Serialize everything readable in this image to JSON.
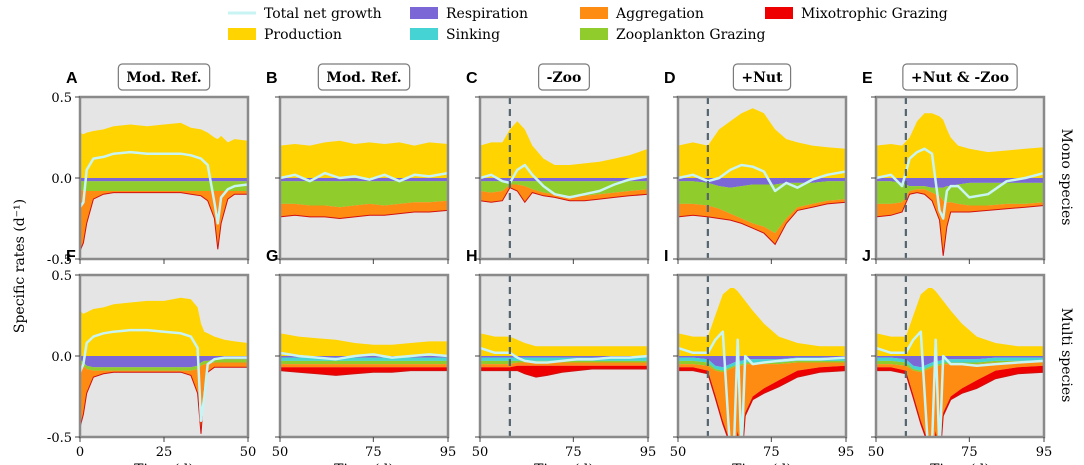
{
  "legend": [
    {
      "label": "Total net growth",
      "color": "#c9f4f4",
      "kind": "line"
    },
    {
      "label": "Respiration",
      "color": "#7b68d6",
      "kind": "patch"
    },
    {
      "label": "Aggregation",
      "color": "#ff8c12",
      "kind": "patch"
    },
    {
      "label": "Mixotrophic Grazing",
      "color": "#ee0000",
      "kind": "patch"
    },
    {
      "label": "Production",
      "color": "#ffd400",
      "kind": "patch"
    },
    {
      "label": "Sinking",
      "color": "#45d3d3",
      "kind": "patch"
    },
    {
      "label": "Zooplankton Grazing",
      "color": "#8fcc2c",
      "kind": "patch"
    }
  ],
  "axes": {
    "ylabel": "Specific rates (d⁻¹)",
    "xlabel": "Time (d)",
    "yticks": [
      "0.5",
      "0.0",
      "-0.5"
    ],
    "ylim": [
      -0.5,
      0.5
    ]
  },
  "row_labels": [
    "Mono species",
    "Multi species"
  ],
  "chart_data": [
    {
      "panel": "A",
      "title": "Mod. Ref.",
      "type": "area",
      "xlim": [
        0,
        50
      ],
      "xticks": [
        0,
        25,
        50
      ],
      "event_day": null,
      "time": [
        0,
        1,
        2,
        4,
        7,
        10,
        15,
        20,
        25,
        30,
        33,
        36,
        38,
        40,
        41,
        42,
        44,
        46,
        50
      ],
      "production": [
        0.28,
        0.27,
        0.28,
        0.29,
        0.3,
        0.32,
        0.33,
        0.32,
        0.33,
        0.34,
        0.31,
        0.3,
        0.28,
        0.25,
        0.24,
        0.26,
        0.22,
        0.24,
        0.23
      ],
      "respiration": [
        -0.02,
        -0.02,
        -0.02,
        -0.02,
        -0.02,
        -0.02,
        -0.02,
        -0.02,
        -0.02,
        -0.02,
        -0.02,
        -0.02,
        -0.02,
        -0.02,
        -0.02,
        -0.02,
        -0.02,
        -0.02,
        -0.02
      ],
      "zooplankton_grazing": [
        -0.05,
        -0.06,
        -0.06,
        -0.06,
        -0.06,
        -0.06,
        -0.06,
        -0.06,
        -0.06,
        -0.06,
        -0.06,
        -0.06,
        -0.06,
        -0.06,
        -0.06,
        -0.06,
        -0.06,
        -0.06,
        -0.06
      ],
      "aggregation": [
        -0.38,
        -0.32,
        -0.2,
        -0.05,
        -0.02,
        -0.01,
        -0.01,
        -0.01,
        -0.01,
        -0.01,
        -0.02,
        -0.03,
        -0.06,
        -0.17,
        -0.36,
        -0.2,
        -0.05,
        -0.02,
        -0.02
      ],
      "net_growth": [
        -0.18,
        -0.15,
        0.05,
        0.12,
        0.13,
        0.15,
        0.16,
        0.15,
        0.15,
        0.15,
        0.14,
        0.12,
        0.08,
        -0.15,
        -0.28,
        -0.12,
        -0.07,
        -0.05,
        -0.04
      ]
    },
    {
      "panel": "B",
      "title": "Mod. Ref.",
      "type": "area",
      "xlim": [
        50,
        95
      ],
      "xticks": [
        50,
        75,
        95
      ],
      "event_day": null,
      "time": [
        50,
        54,
        58,
        62,
        66,
        70,
        74,
        78,
        82,
        86,
        90,
        95
      ],
      "production": [
        0.2,
        0.21,
        0.2,
        0.22,
        0.23,
        0.21,
        0.22,
        0.21,
        0.22,
        0.2,
        0.22,
        0.21
      ],
      "respiration": [
        -0.02,
        -0.02,
        -0.02,
        -0.02,
        -0.02,
        -0.02,
        -0.02,
        -0.02,
        -0.02,
        -0.02,
        -0.02,
        -0.02
      ],
      "zooplankton_grazing": [
        -0.14,
        -0.14,
        -0.15,
        -0.15,
        -0.16,
        -0.15,
        -0.14,
        -0.15,
        -0.14,
        -0.13,
        -0.13,
        -0.12
      ],
      "aggregation": [
        -0.08,
        -0.07,
        -0.07,
        -0.07,
        -0.07,
        -0.07,
        -0.07,
        -0.06,
        -0.06,
        -0.06,
        -0.06,
        -0.06
      ],
      "net_growth": [
        0.0,
        0.02,
        -0.02,
        0.03,
        0.0,
        0.01,
        -0.01,
        0.02,
        -0.02,
        0.02,
        0.01,
        0.03
      ]
    },
    {
      "panel": "C",
      "title": "-Zoo",
      "type": "area",
      "xlim": [
        50,
        95
      ],
      "xticks": [
        50,
        75,
        95
      ],
      "event_day": 58,
      "time": [
        50,
        53,
        56,
        58,
        60,
        62,
        64,
        67,
        70,
        74,
        78,
        82,
        86,
        90,
        95
      ],
      "production": [
        0.2,
        0.22,
        0.22,
        0.3,
        0.35,
        0.3,
        0.2,
        0.12,
        0.08,
        0.08,
        0.09,
        0.1,
        0.12,
        0.14,
        0.18
      ],
      "respiration": [
        -0.02,
        -0.02,
        -0.02,
        -0.02,
        -0.02,
        -0.02,
        -0.02,
        -0.02,
        -0.02,
        -0.02,
        -0.02,
        -0.02,
        -0.02,
        -0.02,
        -0.02
      ],
      "zooplankton_grazing": [
        -0.06,
        -0.07,
        -0.06,
        -0.02,
        -0.02,
        -0.03,
        -0.05,
        -0.07,
        -0.08,
        -0.09,
        -0.09,
        -0.08,
        -0.07,
        -0.06,
        -0.05
      ],
      "aggregation": [
        -0.06,
        -0.06,
        -0.06,
        -0.02,
        -0.04,
        -0.1,
        -0.02,
        -0.02,
        -0.02,
        -0.03,
        -0.03,
        -0.03,
        -0.03,
        -0.03,
        -0.03
      ],
      "net_growth": [
        0.0,
        0.02,
        -0.02,
        -0.03,
        0.05,
        0.08,
        0.02,
        -0.05,
        -0.1,
        -0.12,
        -0.1,
        -0.08,
        -0.04,
        -0.01,
        0.01
      ]
    },
    {
      "panel": "D",
      "title": "+Nut",
      "type": "area",
      "xlim": [
        50,
        95
      ],
      "xticks": [
        50,
        75,
        95
      ],
      "event_day": 58,
      "time": [
        50,
        54,
        58,
        61,
        64,
        67,
        70,
        73,
        76,
        79,
        82,
        86,
        90,
        95
      ],
      "production": [
        0.2,
        0.22,
        0.2,
        0.3,
        0.35,
        0.4,
        0.43,
        0.4,
        0.3,
        0.24,
        0.22,
        0.2,
        0.19,
        0.18
      ],
      "respiration": [
        -0.02,
        -0.02,
        -0.03,
        -0.05,
        -0.06,
        -0.05,
        -0.04,
        -0.04,
        -0.04,
        -0.03,
        -0.03,
        -0.03,
        -0.02,
        -0.02
      ],
      "zooplankton_grazing": [
        -0.14,
        -0.14,
        -0.14,
        -0.14,
        -0.16,
        -0.2,
        -0.24,
        -0.26,
        -0.3,
        -0.22,
        -0.15,
        -0.13,
        -0.12,
        -0.11
      ],
      "aggregation": [
        -0.08,
        -0.07,
        -0.07,
        -0.06,
        -0.04,
        -0.03,
        -0.03,
        -0.04,
        -0.07,
        -0.03,
        -0.02,
        -0.02,
        -0.02,
        -0.02
      ],
      "net_growth": [
        0.0,
        0.02,
        -0.02,
        0.0,
        0.05,
        0.08,
        0.07,
        0.04,
        -0.08,
        -0.03,
        -0.06,
        -0.01,
        0.02,
        0.04
      ]
    },
    {
      "panel": "E",
      "title": "+Nut & -Zoo",
      "type": "area",
      "xlim": [
        50,
        95
      ],
      "xticks": [
        50,
        75,
        95
      ],
      "event_day": 58,
      "time": [
        50,
        54,
        57,
        59,
        61,
        63,
        65,
        67,
        68,
        69,
        70,
        72,
        75,
        80,
        85,
        90,
        95
      ],
      "production": [
        0.2,
        0.21,
        0.2,
        0.25,
        0.35,
        0.4,
        0.4,
        0.38,
        0.36,
        0.3,
        0.25,
        0.2,
        0.18,
        0.16,
        0.17,
        0.18,
        0.19
      ],
      "respiration": [
        -0.02,
        -0.02,
        -0.03,
        -0.05,
        -0.05,
        -0.05,
        -0.06,
        -0.06,
        -0.06,
        -0.05,
        -0.05,
        -0.04,
        -0.03,
        -0.03,
        -0.03,
        -0.03,
        -0.03
      ],
      "zooplankton_grazing": [
        -0.14,
        -0.14,
        -0.12,
        -0.03,
        -0.02,
        -0.02,
        -0.03,
        -0.05,
        -0.08,
        -0.1,
        -0.1,
        -0.12,
        -0.14,
        -0.14,
        -0.13,
        -0.13,
        -0.12
      ],
      "aggregation": [
        -0.08,
        -0.07,
        -0.06,
        -0.02,
        -0.02,
        -0.03,
        -0.05,
        -0.15,
        -0.34,
        -0.15,
        -0.06,
        -0.05,
        -0.04,
        -0.03,
        -0.03,
        -0.02,
        -0.02
      ],
      "net_growth": [
        0.0,
        0.02,
        -0.05,
        0.12,
        0.16,
        0.18,
        0.15,
        -0.2,
        -0.25,
        -0.08,
        -0.05,
        -0.05,
        -0.12,
        -0.1,
        -0.02,
        0.0,
        0.03
      ]
    },
    {
      "panel": "F",
      "title": "",
      "type": "area",
      "xlim": [
        0,
        50
      ],
      "xticks": [
        0,
        25,
        50
      ],
      "event_day": null,
      "time": [
        0,
        1,
        2,
        4,
        7,
        10,
        15,
        20,
        25,
        30,
        33,
        35,
        36,
        37,
        38,
        40,
        43,
        46,
        50
      ],
      "production": [
        0.28,
        0.26,
        0.27,
        0.29,
        0.3,
        0.32,
        0.33,
        0.34,
        0.34,
        0.36,
        0.35,
        0.3,
        0.2,
        0.15,
        0.14,
        0.12,
        0.1,
        0.09,
        0.08
      ],
      "respiration": [
        -0.02,
        -0.04,
        -0.06,
        -0.07,
        -0.07,
        -0.07,
        -0.07,
        -0.07,
        -0.07,
        -0.07,
        -0.07,
        -0.06,
        -0.04,
        -0.03,
        -0.03,
        -0.02,
        -0.02,
        -0.02,
        -0.02
      ],
      "zooplankton_grazing": [
        -0.02,
        -0.02,
        -0.02,
        -0.02,
        -0.02,
        -0.02,
        -0.02,
        -0.02,
        -0.02,
        -0.02,
        -0.02,
        -0.02,
        -0.02,
        -0.02,
        -0.02,
        -0.02,
        -0.02,
        -0.02,
        -0.02
      ],
      "aggregation": [
        -0.4,
        -0.3,
        -0.15,
        -0.04,
        -0.02,
        -0.01,
        -0.01,
        -0.01,
        -0.01,
        -0.01,
        -0.03,
        -0.15,
        -0.42,
        -0.15,
        -0.05,
        -0.03,
        -0.03,
        -0.03,
        -0.03
      ],
      "net_growth": [
        -0.1,
        -0.05,
        0.08,
        0.12,
        0.14,
        0.15,
        0.16,
        0.16,
        0.15,
        0.14,
        0.12,
        0.05,
        -0.4,
        -0.25,
        -0.05,
        -0.02,
        -0.01,
        -0.01,
        -0.01
      ]
    },
    {
      "panel": "G",
      "title": "",
      "type": "area",
      "xlim": [
        50,
        95
      ],
      "xticks": [
        50,
        75,
        95
      ],
      "event_day": null,
      "time": [
        50,
        55,
        60,
        65,
        70,
        75,
        80,
        85,
        90,
        95
      ],
      "production": [
        0.14,
        0.12,
        0.11,
        0.1,
        0.08,
        0.07,
        0.07,
        0.08,
        0.09,
        0.09
      ],
      "respiration": [
        -0.01,
        -0.01,
        -0.01,
        -0.01,
        -0.01,
        -0.01,
        -0.01,
        -0.01,
        -0.01,
        -0.01
      ],
      "sinking": [
        -0.02,
        -0.02,
        -0.02,
        -0.02,
        -0.02,
        -0.02,
        -0.02,
        -0.02,
        -0.02,
        -0.02
      ],
      "zooplankton_grazing": [
        -0.02,
        -0.02,
        -0.02,
        -0.02,
        -0.02,
        -0.02,
        -0.02,
        -0.02,
        -0.02,
        -0.02
      ],
      "aggregation": [
        -0.02,
        -0.02,
        -0.02,
        -0.02,
        -0.02,
        -0.02,
        -0.02,
        -0.02,
        -0.02,
        -0.02
      ],
      "mixotrophic_grazing": [
        -0.02,
        -0.03,
        -0.04,
        -0.05,
        -0.04,
        -0.03,
        -0.03,
        -0.02,
        -0.02,
        -0.02
      ],
      "net_growth": [
        0.02,
        0.0,
        -0.01,
        -0.02,
        0.0,
        0.01,
        -0.01,
        0.0,
        0.01,
        0.0
      ]
    },
    {
      "panel": "H",
      "title": "",
      "type": "area",
      "xlim": [
        50,
        95
      ],
      "xticks": [
        50,
        75,
        95
      ],
      "event_day": 58,
      "time": [
        50,
        54,
        58,
        60,
        62,
        65,
        68,
        72,
        76,
        80,
        85,
        90,
        95
      ],
      "production": [
        0.14,
        0.12,
        0.12,
        0.1,
        0.08,
        0.06,
        0.06,
        0.06,
        0.06,
        0.06,
        0.06,
        0.06,
        0.06
      ],
      "respiration": [
        -0.01,
        -0.01,
        -0.01,
        -0.01,
        -0.01,
        -0.01,
        -0.01,
        -0.01,
        -0.01,
        -0.01,
        -0.01,
        -0.01,
        -0.01
      ],
      "sinking": [
        -0.02,
        -0.02,
        -0.02,
        -0.02,
        -0.02,
        -0.02,
        -0.02,
        -0.02,
        -0.02,
        -0.02,
        -0.02,
        -0.02,
        -0.02
      ],
      "zooplankton_grazing": [
        -0.02,
        -0.02,
        -0.02,
        -0.01,
        -0.01,
        -0.01,
        -0.01,
        -0.01,
        -0.01,
        -0.01,
        -0.01,
        -0.01,
        -0.01
      ],
      "aggregation": [
        -0.02,
        -0.02,
        -0.02,
        -0.02,
        -0.02,
        -0.02,
        -0.02,
        -0.02,
        -0.02,
        -0.02,
        -0.02,
        -0.02,
        -0.02
      ],
      "mixotrophic_grazing": [
        -0.02,
        -0.02,
        -0.02,
        -0.03,
        -0.05,
        -0.07,
        -0.06,
        -0.04,
        -0.03,
        -0.02,
        -0.02,
        -0.02,
        -0.02
      ],
      "net_growth": [
        0.05,
        0.02,
        0.02,
        -0.01,
        -0.03,
        -0.04,
        -0.04,
        -0.03,
        -0.02,
        -0.02,
        -0.01,
        -0.01,
        0.0
      ]
    },
    {
      "panel": "I",
      "title": "",
      "type": "area",
      "xlim": [
        50,
        95
      ],
      "xticks": [
        50,
        75,
        95
      ],
      "event_day": 58,
      "time": [
        50,
        54,
        58,
        60,
        62,
        64,
        65,
        66,
        67,
        68,
        70,
        73,
        77,
        82,
        88,
        95
      ],
      "production": [
        0.14,
        0.12,
        0.12,
        0.25,
        0.38,
        0.42,
        0.42,
        0.4,
        0.37,
        0.34,
        0.28,
        0.2,
        0.12,
        0.08,
        0.06,
        0.06
      ],
      "respiration": [
        -0.01,
        -0.01,
        -0.02,
        -0.06,
        -0.07,
        -0.05,
        -0.04,
        -0.03,
        -0.03,
        -0.02,
        -0.02,
        -0.02,
        -0.02,
        -0.01,
        -0.01,
        -0.01
      ],
      "sinking": [
        -0.02,
        -0.02,
        -0.02,
        -0.02,
        -0.02,
        -0.02,
        -0.02,
        -0.02,
        -0.02,
        -0.02,
        -0.02,
        -0.02,
        -0.02,
        -0.02,
        -0.02,
        -0.02
      ],
      "zooplankton_grazing": [
        -0.02,
        -0.02,
        -0.02,
        -0.01,
        -0.01,
        -0.01,
        -0.01,
        -0.01,
        -0.01,
        -0.01,
        -0.01,
        -0.01,
        -0.01,
        -0.01,
        -0.01,
        -0.01
      ],
      "aggregation": [
        -0.02,
        -0.02,
        -0.03,
        -0.15,
        -0.3,
        -0.45,
        -0.6,
        -0.4,
        -0.6,
        -0.3,
        -0.2,
        -0.15,
        -0.1,
        -0.05,
        -0.03,
        -0.02
      ],
      "mixotrophic_grazing": [
        -0.02,
        -0.02,
        -0.02,
        -0.02,
        -0.02,
        -0.02,
        -0.02,
        -0.02,
        -0.02,
        -0.02,
        -0.02,
        -0.03,
        -0.04,
        -0.04,
        -0.03,
        -0.03
      ],
      "net_growth": [
        0.05,
        0.02,
        0.02,
        0.1,
        0.15,
        -0.6,
        -0.55,
        0.1,
        -0.6,
        0.0,
        -0.05,
        -0.04,
        -0.03,
        -0.02,
        -0.02,
        -0.01
      ]
    },
    {
      "panel": "J",
      "title": "",
      "type": "area",
      "xlim": [
        50,
        95
      ],
      "xticks": [
        50,
        75,
        95
      ],
      "event_day": 58,
      "time": [
        50,
        54,
        58,
        60,
        62,
        64,
        65,
        66,
        67,
        68,
        70,
        73,
        77,
        82,
        88,
        95
      ],
      "production": [
        0.14,
        0.12,
        0.12,
        0.25,
        0.38,
        0.42,
        0.42,
        0.4,
        0.37,
        0.34,
        0.28,
        0.2,
        0.12,
        0.08,
        0.06,
        0.06
      ],
      "respiration": [
        -0.01,
        -0.01,
        -0.02,
        -0.06,
        -0.07,
        -0.05,
        -0.04,
        -0.03,
        -0.03,
        -0.02,
        -0.02,
        -0.02,
        -0.02,
        -0.01,
        -0.01,
        -0.01
      ],
      "sinking": [
        -0.02,
        -0.02,
        -0.02,
        -0.02,
        -0.02,
        -0.02,
        -0.02,
        -0.02,
        -0.02,
        -0.02,
        -0.02,
        -0.02,
        -0.02,
        -0.02,
        -0.02,
        -0.02
      ],
      "zooplankton_grazing": [
        -0.02,
        -0.02,
        -0.02,
        -0.01,
        -0.01,
        -0.01,
        -0.01,
        -0.01,
        -0.01,
        -0.01,
        -0.01,
        -0.01,
        -0.01,
        -0.01,
        -0.01,
        -0.01
      ],
      "aggregation": [
        -0.02,
        -0.02,
        -0.03,
        -0.15,
        -0.3,
        -0.45,
        -0.6,
        -0.4,
        -0.6,
        -0.3,
        -0.2,
        -0.15,
        -0.1,
        -0.05,
        -0.03,
        -0.02
      ],
      "mixotrophic_grazing": [
        -0.02,
        -0.02,
        -0.02,
        -0.02,
        -0.02,
        -0.02,
        -0.02,
        -0.02,
        -0.02,
        -0.02,
        -0.02,
        -0.03,
        -0.05,
        -0.05,
        -0.04,
        -0.04
      ],
      "net_growth": [
        0.05,
        0.02,
        0.02,
        0.1,
        0.15,
        -0.6,
        -0.55,
        0.1,
        -0.6,
        0.0,
        -0.05,
        -0.05,
        -0.06,
        -0.05,
        -0.04,
        -0.03
      ]
    }
  ]
}
